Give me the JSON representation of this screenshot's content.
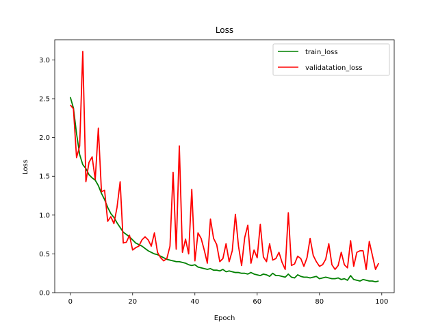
{
  "chart_data": {
    "type": "line",
    "title": "Loss",
    "xlabel": "Epoch",
    "ylabel": "Loss",
    "xlim": [
      -5,
      104
    ],
    "ylim": [
      0,
      3.26
    ],
    "xticks": [
      0,
      20,
      40,
      60,
      80,
      100
    ],
    "yticks": [
      0.0,
      0.5,
      1.0,
      1.5,
      2.0,
      2.5,
      3.0
    ],
    "xtick_labels": [
      "0",
      "20",
      "40",
      "60",
      "80",
      "100"
    ],
    "ytick_labels": [
      "0.0",
      "0.5",
      "1.0",
      "1.5",
      "2.0",
      "2.5",
      "3.0"
    ],
    "grid": false,
    "legend_position": "top-right",
    "series": [
      {
        "name": "train_loss",
        "color": "#008000",
        "x": [
          0,
          1,
          2,
          3,
          4,
          5,
          6,
          7,
          8,
          9,
          10,
          11,
          12,
          13,
          14,
          15,
          16,
          17,
          18,
          19,
          20,
          21,
          22,
          23,
          24,
          25,
          26,
          27,
          28,
          29,
          30,
          31,
          32,
          33,
          34,
          35,
          36,
          37,
          38,
          39,
          40,
          41,
          42,
          43,
          44,
          45,
          46,
          47,
          48,
          49,
          50,
          51,
          52,
          53,
          54,
          55,
          56,
          57,
          58,
          59,
          60,
          61,
          62,
          63,
          64,
          65,
          66,
          67,
          68,
          69,
          70,
          71,
          72,
          73,
          74,
          75,
          76,
          77,
          78,
          79,
          80,
          81,
          82,
          83,
          84,
          85,
          86,
          87,
          88,
          89,
          90,
          91,
          92,
          93,
          94,
          95,
          96,
          97,
          98,
          99
        ],
        "values": [
          2.52,
          2.38,
          2.05,
          1.78,
          1.65,
          1.6,
          1.52,
          1.48,
          1.45,
          1.38,
          1.28,
          1.2,
          1.1,
          1.02,
          0.97,
          0.9,
          0.84,
          0.78,
          0.75,
          0.72,
          0.68,
          0.64,
          0.62,
          0.6,
          0.57,
          0.54,
          0.52,
          0.5,
          0.49,
          0.47,
          0.45,
          0.43,
          0.42,
          0.41,
          0.4,
          0.4,
          0.39,
          0.38,
          0.36,
          0.35,
          0.36,
          0.33,
          0.32,
          0.31,
          0.3,
          0.31,
          0.29,
          0.29,
          0.28,
          0.3,
          0.27,
          0.28,
          0.27,
          0.26,
          0.26,
          0.25,
          0.25,
          0.24,
          0.26,
          0.24,
          0.23,
          0.22,
          0.24,
          0.23,
          0.21,
          0.25,
          0.22,
          0.22,
          0.21,
          0.2,
          0.24,
          0.2,
          0.19,
          0.23,
          0.21,
          0.2,
          0.2,
          0.19,
          0.2,
          0.21,
          0.18,
          0.19,
          0.2,
          0.19,
          0.18,
          0.18,
          0.19,
          0.17,
          0.18,
          0.16,
          0.22,
          0.17,
          0.16,
          0.15,
          0.17,
          0.16,
          0.15,
          0.15,
          0.14,
          0.15
        ]
      },
      {
        "name": "validatation_loss",
        "color": "#ff0000",
        "x": [
          0,
          1,
          2,
          3,
          4,
          5,
          6,
          7,
          8,
          9,
          10,
          11,
          12,
          13,
          14,
          15,
          16,
          17,
          18,
          19,
          20,
          21,
          22,
          23,
          24,
          25,
          26,
          27,
          28,
          29,
          30,
          31,
          32,
          33,
          34,
          35,
          36,
          37,
          38,
          39,
          40,
          41,
          42,
          43,
          44,
          45,
          46,
          47,
          48,
          49,
          50,
          51,
          52,
          53,
          54,
          55,
          56,
          57,
          58,
          59,
          60,
          61,
          62,
          63,
          64,
          65,
          66,
          67,
          68,
          69,
          70,
          71,
          72,
          73,
          74,
          75,
          76,
          77,
          78,
          79,
          80,
          81,
          82,
          83,
          84,
          85,
          86,
          87,
          88,
          89,
          90,
          91,
          92,
          93,
          94,
          95,
          96,
          97,
          98,
          99
        ],
        "values": [
          2.42,
          2.37,
          1.74,
          1.89,
          3.11,
          1.43,
          1.68,
          1.75,
          1.46,
          2.12,
          1.3,
          1.32,
          0.92,
          0.98,
          0.89,
          1.1,
          1.43,
          0.64,
          0.65,
          0.74,
          0.55,
          0.58,
          0.6,
          0.68,
          0.72,
          0.68,
          0.6,
          0.77,
          0.52,
          0.45,
          0.41,
          0.44,
          0.6,
          1.55,
          0.56,
          1.89,
          0.52,
          0.69,
          0.5,
          1.33,
          0.41,
          0.77,
          0.7,
          0.55,
          0.38,
          0.95,
          0.7,
          0.62,
          0.4,
          0.44,
          0.63,
          0.4,
          0.54,
          1.01,
          0.6,
          0.35,
          0.71,
          0.87,
          0.38,
          0.55,
          0.45,
          0.88,
          0.46,
          0.4,
          0.63,
          0.42,
          0.44,
          0.52,
          0.39,
          0.3,
          1.03,
          0.35,
          0.37,
          0.47,
          0.44,
          0.34,
          0.45,
          0.7,
          0.48,
          0.4,
          0.34,
          0.36,
          0.43,
          0.63,
          0.36,
          0.3,
          0.35,
          0.52,
          0.36,
          0.32,
          0.67,
          0.34,
          0.52,
          0.54,
          0.54,
          0.3,
          0.66,
          0.48,
          0.3,
          0.38
        ]
      }
    ]
  }
}
